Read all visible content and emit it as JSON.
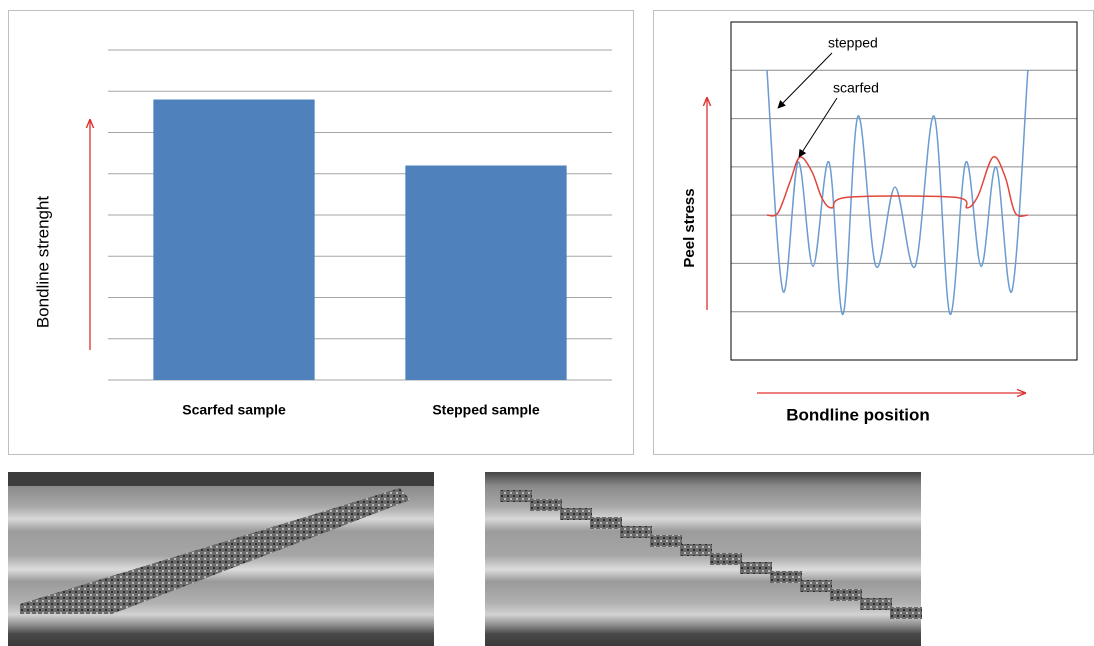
{
  "chart_data": [
    {
      "type": "bar",
      "ylabel": "Bondline strenght",
      "categories": [
        "Scarfed sample",
        "Stepped sample"
      ],
      "values": [
        6.8,
        5.2
      ],
      "color": "#4f81bd",
      "ylim": [
        0,
        8
      ],
      "yticks": [
        0,
        1,
        2,
        3,
        4,
        5,
        6,
        7,
        8
      ],
      "grid": true,
      "tick_labels": false
    },
    {
      "type": "line",
      "ylabel": "Peel stress",
      "xlabel": "Bondline position",
      "xlim": [
        0,
        100
      ],
      "ylim": [
        -3,
        4
      ],
      "yticks": [
        -2,
        -1,
        0,
        1,
        2,
        3
      ],
      "grid": true,
      "tick_labels": false,
      "annotations": [
        {
          "text": "stepped",
          "series": 0
        },
        {
          "text": "scarfed",
          "series": 1
        }
      ],
      "series": [
        {
          "name": "stepped",
          "color": "#6a9bd1",
          "x": [
            10.4,
            15,
            19.4,
            23.7,
            28.3,
            32.4,
            36.7,
            41.9,
            47.4,
            53.2,
            58.7,
            63.3,
            67.9,
            72.3,
            76.6,
            81.2,
            85.8
          ],
          "values": [
            3,
            -1.57,
            1.1,
            -1.06,
            1.1,
            -2.05,
            2.05,
            -1.06,
            0.58,
            -1.06,
            2.05,
            -2.05,
            1.1,
            -1.06,
            1,
            -1.57,
            3
          ]
        },
        {
          "name": "scarfed",
          "color": "#e0463c",
          "x": [
            10.4,
            13.6,
            17.1,
            19.9,
            23.4,
            26.3,
            29.2,
            33.8,
            64.7,
            68.2,
            71.4,
            75.7,
            79.2,
            82.1,
            85.8
          ],
          "values": [
            0,
            0.05,
            0.7,
            1.2,
            0.9,
            0.35,
            0.15,
            0.37,
            0.37,
            0.15,
            0.4,
            1.2,
            0.8,
            0.05,
            0
          ]
        }
      ]
    }
  ]
}
